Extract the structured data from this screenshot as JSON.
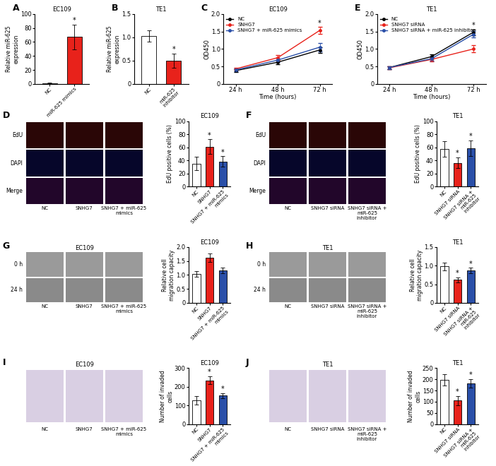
{
  "chart_data": [
    {
      "label": "A",
      "type": "bar",
      "title": "EC109",
      "ylabel": "Relative miR-625 expression",
      "categories": [
        "NC",
        "miR-625 mimics"
      ],
      "values": [
        1,
        67
      ],
      "errors": [
        0.5,
        18
      ],
      "colors": [
        "#ffffff",
        "#e8221b"
      ],
      "significance": [
        null,
        "*"
      ],
      "ylim": [
        0,
        100
      ],
      "yticks": [
        0,
        20,
        40,
        60,
        80,
        100
      ]
    },
    {
      "label": "B",
      "type": "bar",
      "title": "TE1",
      "ylabel": "Relative miR-625 expression",
      "categories": [
        "NC",
        "miR-625 inhibitor"
      ],
      "values": [
        1.03,
        0.5
      ],
      "errors": [
        0.12,
        0.15
      ],
      "colors": [
        "#ffffff",
        "#e8221b"
      ],
      "significance": [
        null,
        "*"
      ],
      "ylim": [
        0,
        1.5
      ],
      "yticks": [
        0,
        0.5,
        {
          "value": 1,
          "label": "1.0"
        },
        1.5
      ]
    },
    {
      "label": "C",
      "type": "line",
      "title": "EC109",
      "xlabel": "Time (hours)",
      "ylabel": "OD450",
      "categories": [
        "24 h",
        "48 h",
        "72 h"
      ],
      "legend": "upper left",
      "series": [
        {
          "name": "NC",
          "color": "#000000",
          "values": [
            0.38,
            0.62,
            0.97
          ],
          "errors": [
            0.04,
            0.06,
            0.08
          ]
        },
        {
          "name": "SNHG7",
          "color": "#e8221b",
          "values": [
            0.43,
            0.75,
            1.53
          ],
          "errors": [
            0.04,
            0.07,
            0.1
          ]
        },
        {
          "name": "SNHG7 + miR-625 mimics",
          "color": "#2a4fa8",
          "values": [
            0.4,
            0.68,
            1.05
          ],
          "errors": [
            0.04,
            0.06,
            0.12
          ]
        }
      ],
      "significance": [
        null,
        null,
        "*"
      ],
      "ylim": [
        0,
        2
      ],
      "yticks": [
        0,
        0.5,
        {
          "value": 1,
          "label": "1.0"
        },
        1.5,
        {
          "value": 2,
          "label": "2.0"
        }
      ]
    },
    {
      "label": "E",
      "type": "line",
      "title": "TE1",
      "xlabel": "Time (hours)",
      "ylabel": "OD450",
      "categories": [
        "24 h",
        "48 h",
        "72 h"
      ],
      "legend": "upper left",
      "series": [
        {
          "name": "NC",
          "color": "#000000",
          "values": [
            0.47,
            0.78,
            1.48
          ],
          "errors": [
            0.04,
            0.06,
            0.08
          ]
        },
        {
          "name": "SNHG7 siRNA",
          "color": "#e8221b",
          "values": [
            0.46,
            0.7,
            1.0
          ],
          "errors": [
            0.04,
            0.05,
            0.1
          ]
        },
        {
          "name": "SNHG7 siRNA + miR-625 inhibitor",
          "color": "#2a4fa8",
          "values": [
            0.47,
            0.72,
            1.42
          ],
          "errors": [
            0.04,
            0.06,
            0.1
          ]
        }
      ],
      "significance": [
        null,
        null,
        "*"
      ],
      "ylim": [
        0,
        2
      ],
      "yticks": [
        0,
        0.5,
        {
          "value": 1,
          "label": "1.0"
        },
        1.5,
        {
          "value": 2,
          "label": "2.0"
        }
      ]
    },
    {
      "label": "D",
      "type": "image",
      "rows": [
        "EdU",
        "DAPI",
        "Merge"
      ],
      "columns": [
        "NC",
        "SNHG7",
        "SNHG7 + miR-625 mimics"
      ]
    },
    {
      "type": "bar",
      "title": "EC109",
      "ylabel": "EdU positive cells (%)",
      "categories": [
        "NC",
        "SNHG7",
        "SNHG7 + miR-625 mimics"
      ],
      "values": [
        35,
        61,
        38
      ],
      "errors": [
        10,
        11,
        8
      ],
      "colors": [
        "#ffffff",
        "#e8221b",
        "#2a4fa8"
      ],
      "significance": [
        null,
        "*",
        "*"
      ],
      "ylim": [
        0,
        100
      ],
      "yticks": [
        0,
        20,
        40,
        60,
        80,
        100
      ]
    },
    {
      "label": "F",
      "type": "image",
      "rows": [
        "EdU",
        "DAPI",
        "Merge"
      ],
      "columns": [
        "NC",
        "SNHG7 siRNA",
        "SNHG7 siRNA + miR-625 inhibitor"
      ]
    },
    {
      "type": "bar",
      "title": "TE1",
      "ylabel": "EdU positive cells (%)",
      "categories": [
        "NC",
        "SNHG7 siRNA",
        "SNHG7 siRNA + miR-625 inhibitor"
      ],
      "values": [
        57,
        36,
        58
      ],
      "errors": [
        12,
        8,
        12
      ],
      "colors": [
        "#ffffff",
        "#e8221b",
        "#2a4fa8"
      ],
      "significance": [
        null,
        "*",
        "*"
      ],
      "ylim": [
        0,
        100
      ],
      "yticks": [
        0,
        20,
        40,
        60,
        80,
        100
      ]
    },
    {
      "label": "G",
      "type": "image",
      "title": "EC109",
      "rows": [
        "0 h",
        "24 h"
      ],
      "columns": [
        "NC",
        "SNHG7",
        "SNHG7 + miR-625 mimics"
      ]
    },
    {
      "type": "bar",
      "title": "EC109",
      "ylabel": "Relative cell migration capacity",
      "categories": [
        "NC",
        "SNHG7",
        "SNHG7 + miR-625 mimics"
      ],
      "values": [
        1.03,
        1.62,
        1.17
      ],
      "errors": [
        0.1,
        0.15,
        0.1
      ],
      "colors": [
        "#ffffff",
        "#e8221b",
        "#2a4fa8"
      ],
      "ylim": [
        0,
        2
      ],
      "yticks": [
        0,
        0.5,
        {
          "value": 1,
          "label": "1.0"
        },
        1.5,
        {
          "value": 2,
          "label": "2.0"
        }
      ]
    },
    {
      "label": "H",
      "type": "image",
      "title": "TE1",
      "rows": [
        "0 h",
        "24 h"
      ],
      "columns": [
        "NC",
        "SNHG7 siRNA",
        "SNHG7 siRNA + miR-625 inhibitor"
      ]
    },
    {
      "type": "bar",
      "title": "TE1",
      "ylabel": "Relative cell migration capacity",
      "categories": [
        "NC",
        "SNHG7 siRNA",
        "SNHG7 siRNA + miR-625 inhibitor"
      ],
      "values": [
        0.98,
        0.62,
        0.87
      ],
      "errors": [
        0.1,
        0.07,
        0.07
      ],
      "colors": [
        "#ffffff",
        "#e8221b",
        "#2a4fa8"
      ],
      "significance": [
        null,
        "*",
        "*"
      ],
      "ylim": [
        0,
        1.5
      ],
      "yticks": [
        0,
        0.5,
        {
          "value": 1,
          "label": "1.0"
        },
        1.5
      ]
    },
    {
      "label": "I",
      "type": "image",
      "title": "EC109",
      "columns": [
        "NC",
        "SNHG7",
        "SNHG7 + miR-625 mimics"
      ]
    },
    {
      "type": "bar",
      "title": "EC109",
      "ylabel": "Number of invaded cells",
      "categories": [
        "NC",
        "SNHG7",
        "SNHG7 + miR-625 mimics"
      ],
      "values": [
        127,
        235,
        152
      ],
      "errors": [
        22,
        20,
        15
      ],
      "colors": [
        "#ffffff",
        "#e8221b",
        "#2a4fa8"
      ],
      "significance": [
        null,
        "*",
        "*"
      ],
      "ylim": [
        0,
        300
      ],
      "yticks": [
        0,
        100,
        200,
        300
      ]
    },
    {
      "label": "J",
      "type": "image",
      "title": "TE1",
      "columns": [
        "NC",
        "SNHG7 siRNA",
        "SNHG7 siRNA + miR-625 inhibitor"
      ]
    },
    {
      "type": "bar",
      "title": "TE1",
      "ylabel": "Number of invaded cells",
      "categories": [
        "NC",
        "SNHG7 siRNA",
        "SNHG7 siRNA + miR-625 inhibitor"
      ],
      "values": [
        197,
        105,
        182
      ],
      "errors": [
        25,
        20,
        20
      ],
      "colors": [
        "#ffffff",
        "#e8221b",
        "#2a4fa8"
      ],
      "significance": [
        null,
        "*",
        "*"
      ],
      "ylim": [
        0,
        250
      ],
      "yticks": [
        0,
        50,
        100,
        150,
        200,
        250
      ]
    }
  ]
}
